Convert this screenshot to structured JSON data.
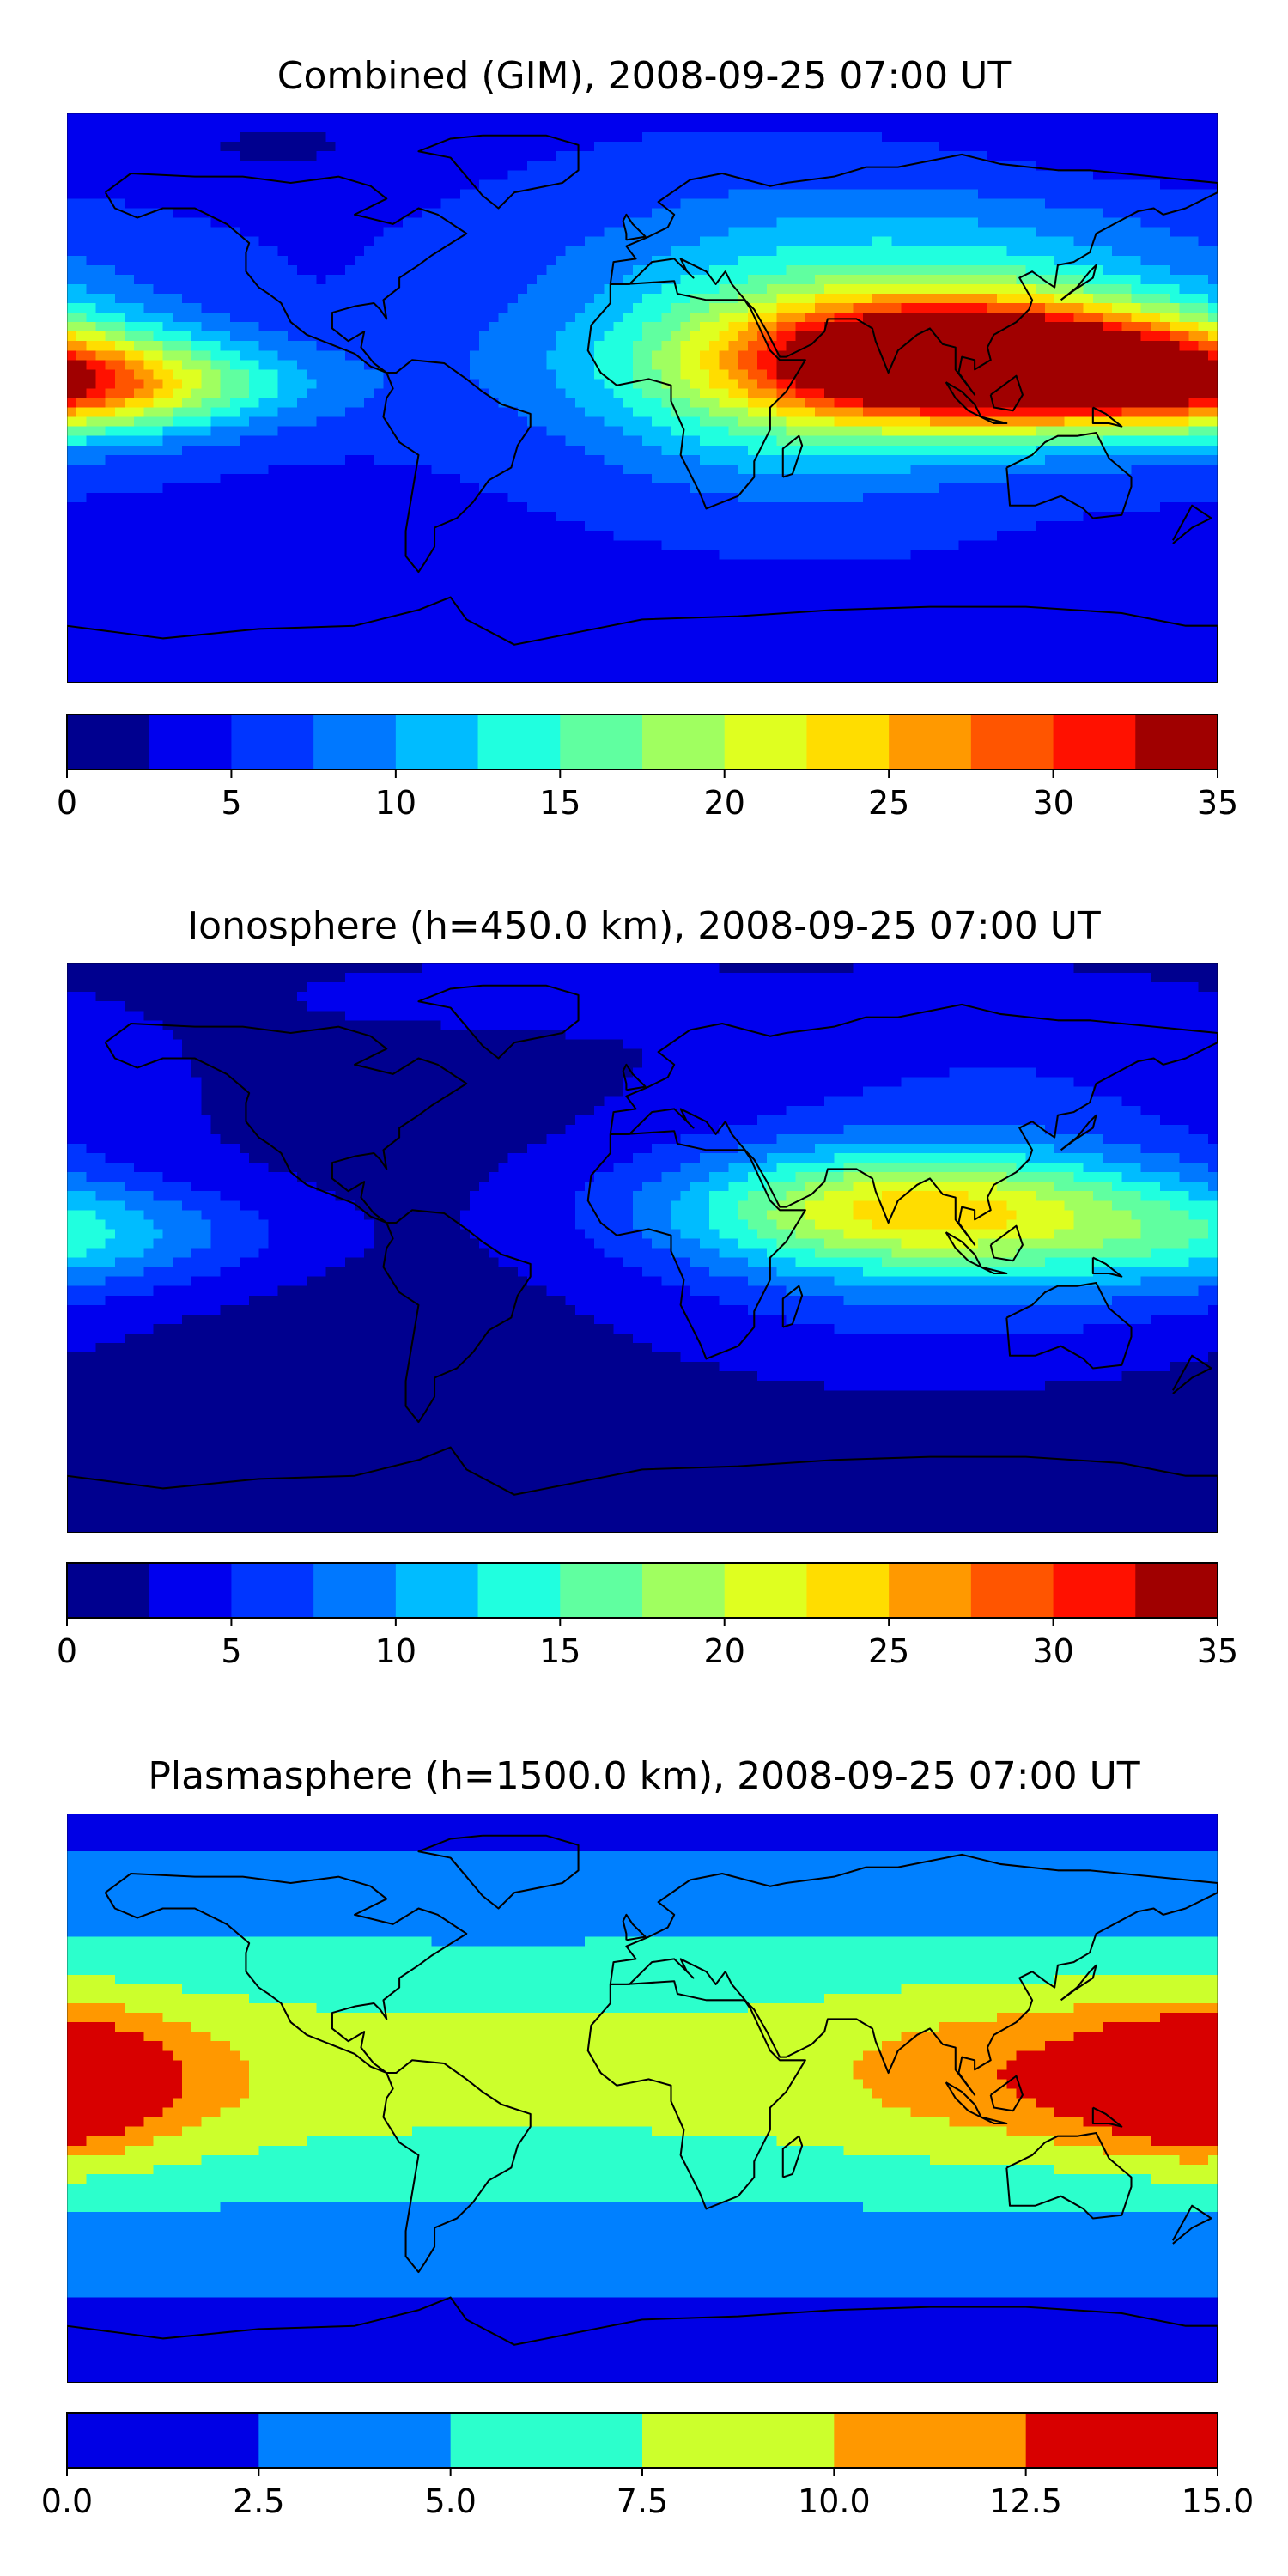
{
  "colors": {
    "jet14": [
      "#00008f",
      "#0000ee",
      "#0035ff",
      "#0078ff",
      "#00bcff",
      "#20ffdf",
      "#60ffa0",
      "#a0ff60",
      "#dfff20",
      "#ffdd00",
      "#ff9900",
      "#ff5500",
      "#ff1100",
      "#a00000"
    ],
    "jet6": [
      "#0000e5",
      "#0080ff",
      "#2cffcc",
      "#ccff2c",
      "#ff9800",
      "#d80000"
    ],
    "outline": "#000000"
  },
  "chart_data": [
    {
      "type": "heatmap",
      "title": "Combined (GIM), 2008-09-25 07:00 UT",
      "map": "world-equirectangular",
      "colorbar": {
        "ticks": [
          "0",
          "5",
          "10",
          "15",
          "20",
          "25",
          "30",
          "35"
        ],
        "levels": [
          0,
          2.5,
          5,
          7.5,
          10,
          12.5,
          15,
          17.5,
          20,
          22.5,
          25,
          27.5,
          30,
          32.5,
          35
        ],
        "palette": "jet14"
      },
      "field": {
        "background": 4.5,
        "blobs": [
          {
            "lon": 105,
            "lat": 12,
            "a": 34,
            "sx": 48,
            "sy": 13
          },
          {
            "lon": 75,
            "lat": 10,
            "a": 9,
            "sx": 75,
            "sy": 20
          },
          {
            "lon": 45,
            "lat": 0,
            "a": 5,
            "sx": 40,
            "sy": 25
          },
          {
            "lon": -170,
            "lat": 4,
            "a": 12,
            "sx": 45,
            "sy": 10
          },
          {
            "lon": 170,
            "lat": 4,
            "a": 8,
            "sx": 40,
            "sy": 12
          },
          {
            "lon": 80,
            "lat": 45,
            "a": 6,
            "sx": 70,
            "sy": 20
          },
          {
            "lon": 150,
            "lat": 75,
            "a": -1.5,
            "sx": 60,
            "sy": 12
          },
          {
            "lon": -110,
            "lat": 80,
            "a": -2,
            "sx": 30,
            "sy": 8
          },
          {
            "lon": -80,
            "lat": -65,
            "a": -1.5,
            "sx": 80,
            "sy": 10
          }
        ]
      }
    },
    {
      "type": "heatmap",
      "title": "Ionosphere  (h=450.0 km), 2008-09-25 07:00 UT",
      "map": "world-equirectangular",
      "colorbar": {
        "ticks": [
          "0",
          "5",
          "10",
          "15",
          "20",
          "25",
          "30",
          "35"
        ],
        "levels": [
          0,
          2.5,
          5,
          7.5,
          10,
          12.5,
          15,
          17.5,
          20,
          22.5,
          25,
          27.5,
          30,
          32.5,
          35
        ],
        "palette": "jet14"
      },
      "field": {
        "background": 1.5,
        "blobs": [
          {
            "lon": 85,
            "lat": 12,
            "a": 20,
            "sx": 55,
            "sy": 14
          },
          {
            "lon": 90,
            "lat": -15,
            "a": 4,
            "sx": 60,
            "sy": 18
          },
          {
            "lon": 110,
            "lat": 50,
            "a": 3.5,
            "sx": 70,
            "sy": 25
          },
          {
            "lon": -165,
            "lat": 4,
            "a": 6,
            "sx": 40,
            "sy": 11
          },
          {
            "lon": 160,
            "lat": 0,
            "a": 3,
            "sx": 35,
            "sy": 15
          },
          {
            "lon": -40,
            "lat": 80,
            "a": 2,
            "sx": 50,
            "sy": 8
          }
        ]
      }
    },
    {
      "type": "heatmap",
      "title": "Plasmasphere (h=1500.0 km), 2008-09-25 07:00 UT",
      "map": "world-equirectangular",
      "colorbar": {
        "ticks": [
          "0.0",
          "2.5",
          "5.0",
          "7.5",
          "10.0",
          "12.5",
          "15.0"
        ],
        "levels": [
          0,
          2.5,
          5,
          7.5,
          10,
          12.5,
          15
        ],
        "palette": "jet6"
      },
      "field": {
        "background": 1.5,
        "band": {
          "lat": 8,
          "a": 6.8,
          "sy": 36
        },
        "blobs": [
          {
            "lon": -175,
            "lat": 6,
            "a": 5,
            "sx": 35,
            "sy": 16
          },
          {
            "lon": 172,
            "lat": 4,
            "a": 6,
            "sx": 22,
            "sy": 15
          },
          {
            "lon": 115,
            "lat": 8,
            "a": 3.5,
            "sx": 40,
            "sy": 18
          }
        ]
      }
    }
  ]
}
